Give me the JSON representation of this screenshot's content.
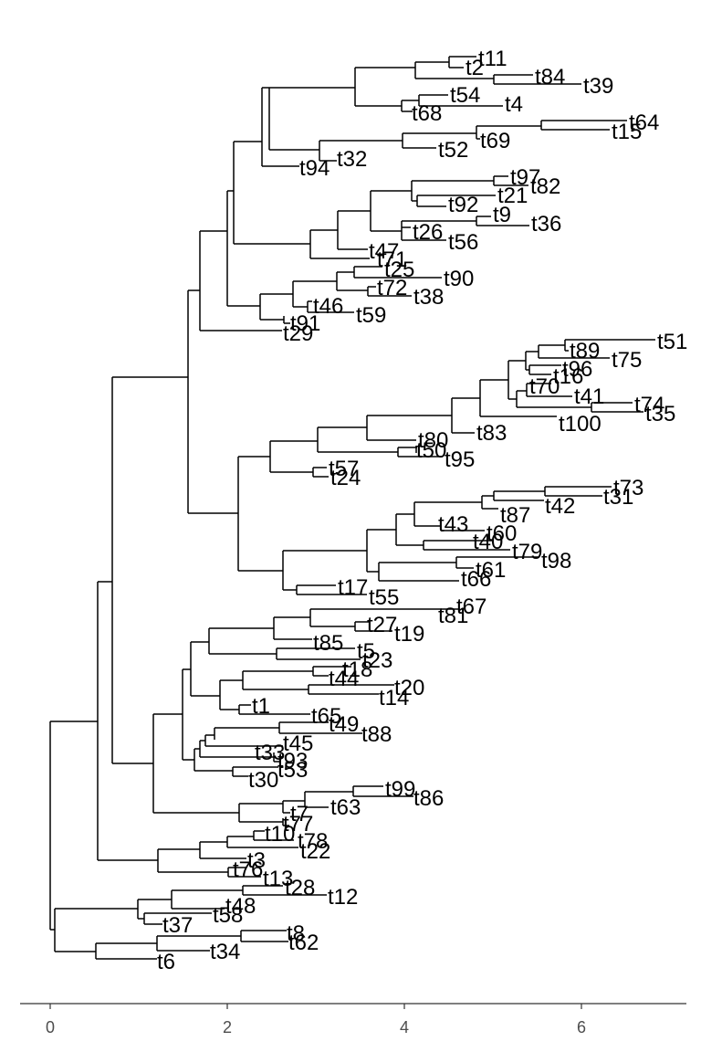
{
  "tree": {
    "axis": {
      "ticks": [
        0,
        2,
        4,
        6
      ],
      "labels": [
        "0",
        "2",
        "4",
        "6"
      ]
    },
    "tips": [
      "t11",
      "t2",
      "t84",
      "t39",
      "t54",
      "t4",
      "t68",
      "t64",
      "t15",
      "t69",
      "t52",
      "t94",
      "t32",
      "t97",
      "t82",
      "t21",
      "t92",
      "t9",
      "t36",
      "t26",
      "t56",
      "t47",
      "t71",
      "t25",
      "t90",
      "t72",
      "t38",
      "t46",
      "t59",
      "t91",
      "t29",
      "t51",
      "t89",
      "t75",
      "t96",
      "t16",
      "t70",
      "t41",
      "t74",
      "t35",
      "t100",
      "t83",
      "t80",
      "t50",
      "t95",
      "t57",
      "t24",
      "t73",
      "t31",
      "t42",
      "t87",
      "t43",
      "t60",
      "t40",
      "t79",
      "t98",
      "t61",
      "t66",
      "t17",
      "t55",
      "t67",
      "t81",
      "t27",
      "t19",
      "t85",
      "t5",
      "t23",
      "t18",
      "t44",
      "t20",
      "t14",
      "t1",
      "t65",
      "t49",
      "t88",
      "t45",
      "t33",
      "t93",
      "t53",
      "t30",
      "t99",
      "t86",
      "t63",
      "t7",
      "t77",
      "t10",
      "t78",
      "t22",
      "t3",
      "t76",
      "t13",
      "t28",
      "t12",
      "t48",
      "t58",
      "t37",
      "t8",
      "t62",
      "t34",
      "t6"
    ]
  },
  "chart_data": {
    "type": "dendrogram",
    "xlabel": "",
    "ylabel": "",
    "xlim": [
      -0.35,
      7.2
    ],
    "x_ticks": [
      0,
      2,
      4,
      6
    ],
    "n_tips": 100
  }
}
